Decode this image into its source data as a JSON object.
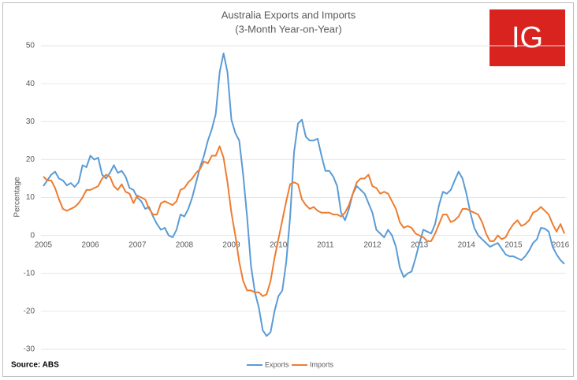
{
  "chart_data": {
    "type": "line",
    "title": "Australia Exports and Imports",
    "subtitle": "(3-Month Year-on-Year)",
    "y_label": "Percentage",
    "source": "Source: ABS",
    "logo": "IG",
    "categories": [
      "2005",
      null,
      null,
      null,
      null,
      null,
      null,
      null,
      null,
      null,
      null,
      null,
      "2006",
      null,
      null,
      null,
      null,
      null,
      null,
      null,
      null,
      null,
      null,
      null,
      "2007",
      null,
      null,
      null,
      null,
      null,
      null,
      null,
      null,
      null,
      null,
      null,
      "2008",
      null,
      null,
      null,
      null,
      null,
      null,
      null,
      null,
      null,
      null,
      null,
      "2009",
      null,
      null,
      null,
      null,
      null,
      null,
      null,
      null,
      null,
      null,
      null,
      "2010",
      null,
      null,
      null,
      null,
      null,
      null,
      null,
      null,
      null,
      null,
      null,
      "2011",
      null,
      null,
      null,
      null,
      null,
      null,
      null,
      null,
      null,
      null,
      null,
      "2012",
      null,
      null,
      null,
      null,
      null,
      null,
      null,
      null,
      null,
      null,
      null,
      "2013",
      null,
      null,
      null,
      null,
      null,
      null,
      null,
      null,
      null,
      null,
      null,
      "2014",
      null,
      null,
      null,
      null,
      null,
      null,
      null,
      null,
      null,
      null,
      null,
      "2015",
      null,
      null,
      null,
      null,
      null,
      null,
      null,
      null,
      null,
      null,
      null,
      "2016",
      null
    ],
    "series": [
      {
        "name": "Exports",
        "color": "#5b9bd5",
        "values": [
          13,
          14.5,
          16,
          16.8,
          15,
          14.5,
          13.2,
          13.8,
          12.8,
          14,
          18.5,
          18,
          21,
          20,
          20.5,
          16,
          15,
          16.5,
          18.5,
          16.5,
          17,
          15.5,
          12.5,
          12,
          10,
          9,
          7,
          7.5,
          5,
          3,
          1.5,
          2,
          0,
          -0.5,
          1.5,
          5.5,
          5,
          7,
          10,
          14,
          18,
          21,
          25,
          28,
          32,
          43,
          48,
          43,
          30.5,
          27,
          25,
          16,
          5,
          -8,
          -15,
          -19,
          -25,
          -26.5,
          -25.5,
          -20,
          -16,
          -14.5,
          -7,
          5,
          22,
          29.5,
          30.5,
          26,
          25,
          25,
          25.5,
          21,
          17,
          17,
          15.5,
          13,
          6,
          4,
          7,
          11,
          13,
          12,
          11,
          8.5,
          6,
          1.5,
          0.5,
          -0.5,
          1.5,
          0,
          -3,
          -8.5,
          -11,
          -10,
          -9.5,
          -6,
          -2,
          1.5,
          1,
          0.5,
          3,
          8,
          11.5,
          11,
          12,
          14.5,
          16.8,
          15,
          11,
          6,
          2,
          0,
          -1,
          -2,
          -3,
          -2.5,
          -2,
          -3.5,
          -5,
          -5.5,
          -5.5,
          -6,
          -6.5,
          -5.5,
          -4,
          -2,
          -1,
          2,
          1.8,
          1,
          -3,
          -5,
          -6.5,
          -7.5
        ]
      },
      {
        "name": "Imports",
        "color": "#ed7d31",
        "values": [
          15.5,
          14.5,
          14.5,
          12.5,
          9.5,
          7,
          6.5,
          7,
          7.5,
          8.5,
          10,
          12,
          12,
          12.5,
          13,
          15,
          16,
          15.5,
          13,
          12,
          13.5,
          11.5,
          11,
          8.5,
          10.5,
          10,
          9.5,
          7,
          5.5,
          5.5,
          8.5,
          9,
          8.5,
          8,
          9,
          12,
          12.5,
          14,
          15,
          16.5,
          17.5,
          19.5,
          19,
          21,
          21,
          23.5,
          20.5,
          14,
          6,
          0,
          -7,
          -12,
          -14.5,
          -14.5,
          -15,
          -15,
          -16,
          -15.5,
          -12,
          -6,
          -1,
          4,
          9,
          13.5,
          14,
          13.5,
          9.5,
          8,
          7,
          7.5,
          6.5,
          6,
          6,
          6,
          5.5,
          5.5,
          5,
          6,
          8,
          11,
          14,
          15,
          15,
          16,
          13,
          12.5,
          11,
          11.5,
          11,
          9,
          7,
          3.5,
          2,
          2.5,
          2,
          0.5,
          0,
          -0.5,
          -1.5,
          -1.5,
          0.5,
          3,
          5.5,
          5.5,
          3.5,
          4,
          5,
          7,
          7,
          6.5,
          6,
          5.5,
          3.5,
          0.5,
          -1.5,
          -1.5,
          0,
          -1,
          -0.5,
          1.5,
          3,
          4,
          2.5,
          3,
          4,
          6,
          6.5,
          7.5,
          6.5,
          5.5,
          3,
          1,
          3,
          0.5
        ]
      }
    ],
    "ylim": [
      -30,
      50
    ],
    "yticks": [
      -30,
      -20,
      -10,
      0,
      10,
      20,
      30,
      40,
      50
    ],
    "grid": true
  }
}
